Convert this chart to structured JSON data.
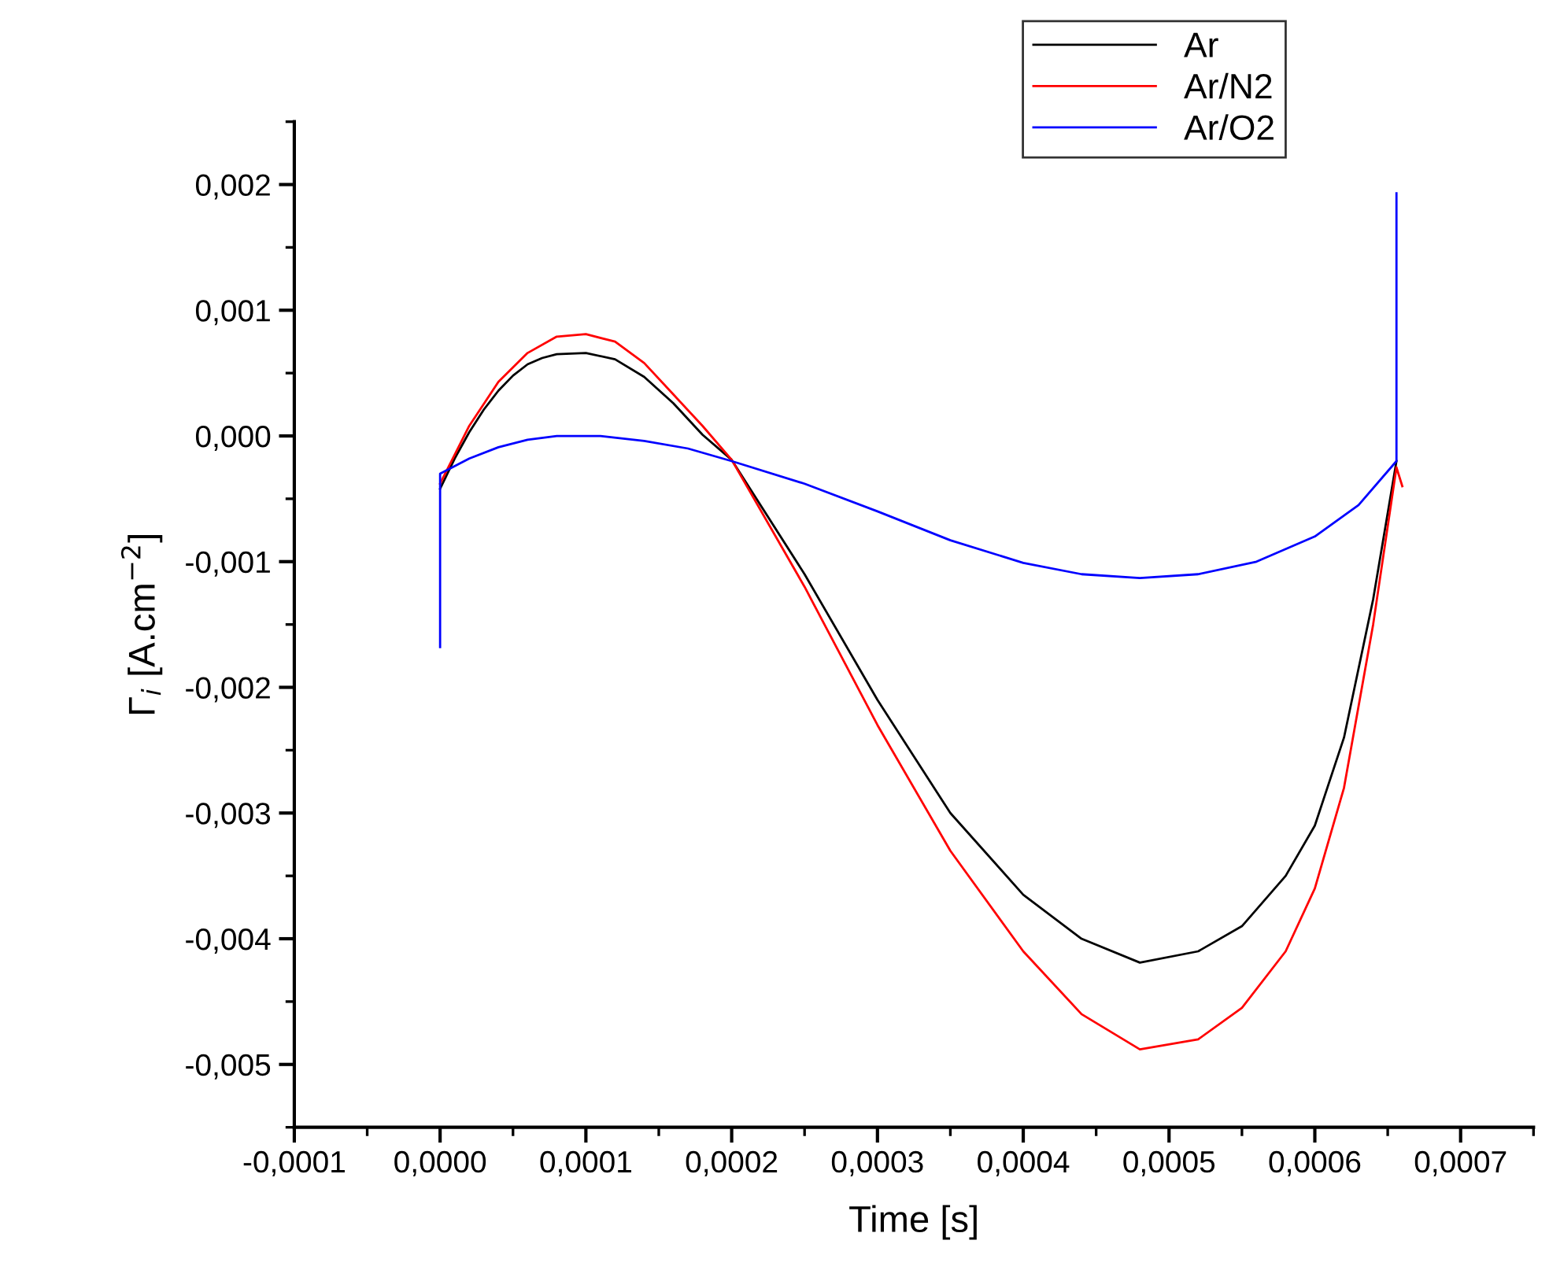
{
  "chart_data": {
    "type": "line",
    "xlabel": "Time [s]",
    "ylabel": "Γ$_{i}$ [A.cm$^{−2}$]",
    "legend": "top right",
    "grid": false,
    "marker": "none",
    "line_style": "solid",
    "xlim": [
      -0.0001,
      0.00075
    ],
    "ylim": [
      -0.0055,
      0.0025
    ],
    "xticks": [
      {
        "value": -0.0001,
        "label": "-0,0001"
      },
      {
        "value": 0,
        "label": "0,0000"
      },
      {
        "value": 0.0001,
        "label": "0,0001"
      },
      {
        "value": 0.0002,
        "label": "0,0002"
      },
      {
        "value": 0.0003,
        "label": "0,0003"
      },
      {
        "value": 0.0004,
        "label": "0,0004"
      },
      {
        "value": 0.0005,
        "label": "0,0005"
      },
      {
        "value": 0.0006,
        "label": "0,0006"
      },
      {
        "value": 0.0007,
        "label": "0,0007"
      }
    ],
    "yticks": [
      {
        "value": -0.005,
        "label": "-0,005"
      },
      {
        "value": -0.004,
        "label": "-0,004"
      },
      {
        "value": -0.003,
        "label": "-0,003"
      },
      {
        "value": -0.002,
        "label": "-0,002"
      },
      {
        "value": -0.001,
        "label": "-0,001"
      },
      {
        "value": 0,
        "label": "0,000"
      },
      {
        "value": 0.001,
        "label": "0,001"
      },
      {
        "value": 0.002,
        "label": "0,002"
      }
    ],
    "series": [
      {
        "name": "Ar",
        "color": "#000000",
        "x": [
          0,
          1e-05,
          2e-05,
          3e-05,
          4e-05,
          5e-05,
          6e-05,
          7e-05,
          8e-05,
          0.0001,
          0.00012,
          0.00014,
          0.00016,
          0.00018,
          0.0002,
          0.00025,
          0.0003,
          0.00035,
          0.0004,
          0.00044,
          0.00048,
          0.00052,
          0.00055,
          0.00058,
          0.0006,
          0.00062,
          0.00064,
          0.000656
        ],
        "values": [
          -0.00042,
          -0.00018,
          3e-05,
          0.00021,
          0.00036,
          0.00048,
          0.00057,
          0.00062,
          0.00065,
          0.00066,
          0.00061,
          0.00047,
          0.00026,
          1e-05,
          -0.00019,
          -0.0011,
          -0.0021,
          -0.003,
          -0.00365,
          -0.004,
          -0.00419,
          -0.0041,
          -0.0039,
          -0.0035,
          -0.0031,
          -0.0024,
          -0.0013,
          -0.0002
        ]
      },
      {
        "name": "Ar/N2",
        "color": "#ff0000",
        "x": [
          0,
          1e-05,
          2e-05,
          4e-05,
          6e-05,
          8e-05,
          0.0001,
          0.00012,
          0.00014,
          0.00016,
          0.00018,
          0.0002,
          0.00025,
          0.0003,
          0.00035,
          0.0004,
          0.00044,
          0.00048,
          0.00052,
          0.00055,
          0.00058,
          0.0006,
          0.00062,
          0.00064,
          0.000656,
          0.00066
        ],
        "values": [
          -0.00038,
          -0.00015,
          8e-05,
          0.00043,
          0.00066,
          0.00079,
          0.00081,
          0.00075,
          0.00058,
          0.00033,
          8e-05,
          -0.00019,
          -0.0012,
          -0.0023,
          -0.0033,
          -0.0041,
          -0.0046,
          -0.00488,
          -0.0048,
          -0.00455,
          -0.0041,
          -0.0036,
          -0.0028,
          -0.0015,
          -0.00025,
          -0.0004
        ]
      },
      {
        "name": "Ar/O2",
        "color": "#0000ff",
        "x": [
          0,
          0,
          2e-05,
          4e-05,
          6e-05,
          8e-05,
          0.00011,
          0.00014,
          0.00017,
          0.0002,
          0.00025,
          0.0003,
          0.00035,
          0.0004,
          0.00044,
          0.00048,
          0.00052,
          0.00056,
          0.0006,
          0.00063,
          0.000656,
          0.000656
        ],
        "values": [
          -0.00168,
          -0.0003,
          -0.00018,
          -9e-05,
          -3e-05,
          0,
          0,
          -4e-05,
          -0.0001,
          -0.0002,
          -0.00038,
          -0.0006,
          -0.00083,
          -0.00101,
          -0.0011,
          -0.00113,
          -0.0011,
          -0.001,
          -0.0008,
          -0.00055,
          -0.0002,
          0.00193
        ]
      }
    ]
  }
}
